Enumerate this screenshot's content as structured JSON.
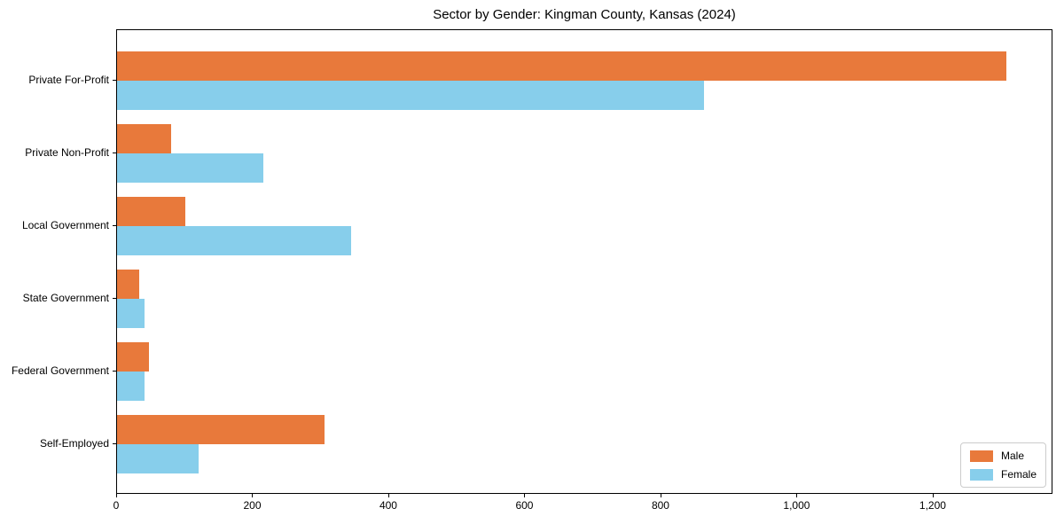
{
  "chart_data": {
    "type": "bar",
    "orientation": "horizontal",
    "title": "Sector by Gender: Kingman County, Kansas (2024)",
    "categories": [
      "Private For-Profit",
      "Private Non-Profit",
      "Local Government",
      "State Government",
      "Federal Government",
      "Self-Employed"
    ],
    "series": [
      {
        "name": "Male",
        "color": "#e8793b",
        "values": [
          1310,
          80,
          100,
          33,
          47,
          305
        ]
      },
      {
        "name": "Female",
        "color": "#87ceeb",
        "values": [
          864,
          216,
          345,
          40,
          40,
          120
        ]
      }
    ],
    "xlabel": "",
    "ylabel": "",
    "xlim": [
      0,
      1376
    ],
    "xticks": [
      0,
      200,
      400,
      600,
      800,
      1000,
      1200
    ],
    "xtick_labels": [
      "0",
      "200",
      "400",
      "600",
      "800",
      "1,000",
      "1,200"
    ],
    "legend_position": "lower right",
    "grid": false,
    "background_color": "#ffffff",
    "spine_color": "#000000"
  }
}
